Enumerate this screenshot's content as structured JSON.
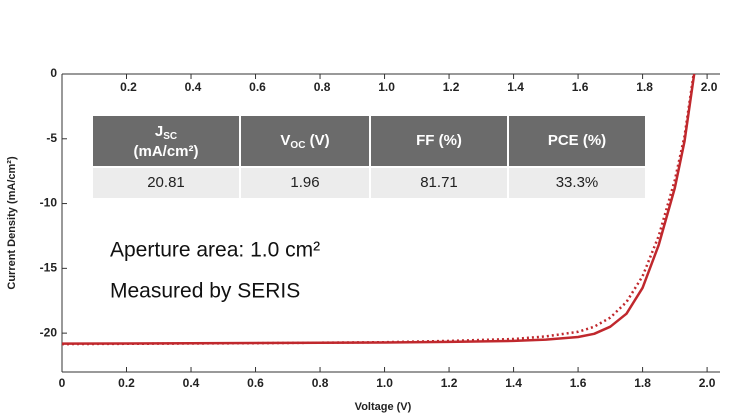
{
  "chart_data": {
    "type": "line",
    "x_label": "Voltage (V)",
    "y_label": "Current Density (mA/cm²)",
    "xlim": [
      0,
      2.04
    ],
    "ylim": [
      -23,
      0
    ],
    "xticks": [
      0,
      0.2,
      0.4,
      0.6,
      0.8,
      {
        "value": 1,
        "label": "1.0"
      },
      1.2,
      1.4,
      1.6,
      1.8,
      {
        "value": 2,
        "label": "2.0"
      }
    ],
    "x2ticks": [
      0.2,
      0.4,
      0.6,
      0.8,
      {
        "value": 1,
        "label": "1.0"
      },
      1.2,
      1.4,
      1.6,
      1.8,
      {
        "value": 2,
        "label": "2.0"
      }
    ],
    "yticks": [
      0,
      -5,
      -10,
      -15,
      -20
    ],
    "x": [
      0,
      0.2,
      0.4,
      0.6,
      0.8,
      1.0,
      1.2,
      1.4,
      1.5,
      1.6,
      1.65,
      1.7,
      1.75,
      1.8,
      1.85,
      1.9,
      1.93,
      1.96
    ],
    "series": [
      {
        "color": "#c0282d",
        "dash": "solid",
        "values": [
          -20.81,
          -20.8,
          -20.78,
          -20.76,
          -20.74,
          -20.72,
          -20.68,
          -20.6,
          -20.5,
          -20.3,
          -20.05,
          -19.5,
          -18.5,
          -16.5,
          -13.2,
          -8.8,
          -5.2,
          0
        ]
      },
      {
        "color": "#c0282d",
        "dash": "dotted",
        "values": [
          -20.85,
          -20.82,
          -20.8,
          -20.78,
          -20.74,
          -20.7,
          -20.6,
          -20.45,
          -20.25,
          -19.9,
          -19.5,
          -18.8,
          -17.6,
          -15.6,
          -12.5,
          -8.2,
          -4.8,
          0.3
        ]
      }
    ],
    "table": {
      "headers": [
        {
          "main": "J",
          "sub": "SC",
          "line2": "(mA/cm²)"
        },
        {
          "main": "V",
          "sub": "OC",
          "rest": " (V)"
        },
        {
          "main": "FF (%)"
        },
        {
          "main": "PCE (%)"
        }
      ],
      "row": [
        "20.81",
        "1.96",
        "81.71",
        "33.3%"
      ]
    },
    "annotations": [
      "Aperture area: 1.0 cm²",
      "Measured by SERIS"
    ]
  }
}
